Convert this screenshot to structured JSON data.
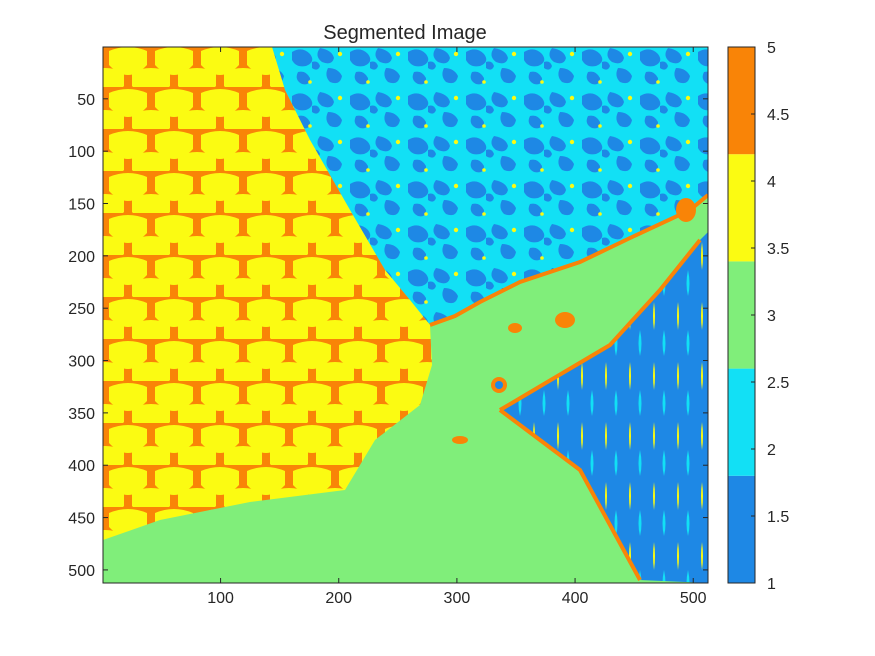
{
  "chart_data": {
    "type": "heatmap",
    "title": "Segmented Image",
    "xlabel": "",
    "ylabel": "",
    "x_ticks": [
      100,
      200,
      300,
      400,
      500
    ],
    "y_ticks": [
      50,
      100,
      150,
      200,
      250,
      300,
      350,
      400,
      450,
      500
    ],
    "xlim": [
      0.5,
      512.5
    ],
    "ylim": [
      0.5,
      512.5
    ],
    "y_reversed": true,
    "colorbar": {
      "range": [
        1,
        5
      ],
      "ticks": [
        "1",
        "1.5",
        "2",
        "2.5",
        "3",
        "3.5",
        "4",
        "4.5",
        "5"
      ],
      "classes": [
        {
          "value": 1,
          "color": "#1e88e5"
        },
        {
          "value": 2,
          "color": "#12e0f5"
        },
        {
          "value": 3,
          "color": "#80ee7a"
        },
        {
          "value": 4,
          "color": "#fbfb12"
        },
        {
          "value": 5,
          "color": "#f98407"
        }
      ]
    },
    "regions": [
      {
        "class": 4,
        "name": "scales",
        "dominant_class": 4,
        "secondary_class": 5
      },
      {
        "class": 2,
        "name": "upper-right textured",
        "dominant_class": 2,
        "secondary_class": 1
      },
      {
        "class": 3,
        "name": "lower smooth",
        "dominant_class": 3
      },
      {
        "class": 1,
        "name": "right strip",
        "dominant_class": 1,
        "secondary_class": 4
      }
    ]
  }
}
